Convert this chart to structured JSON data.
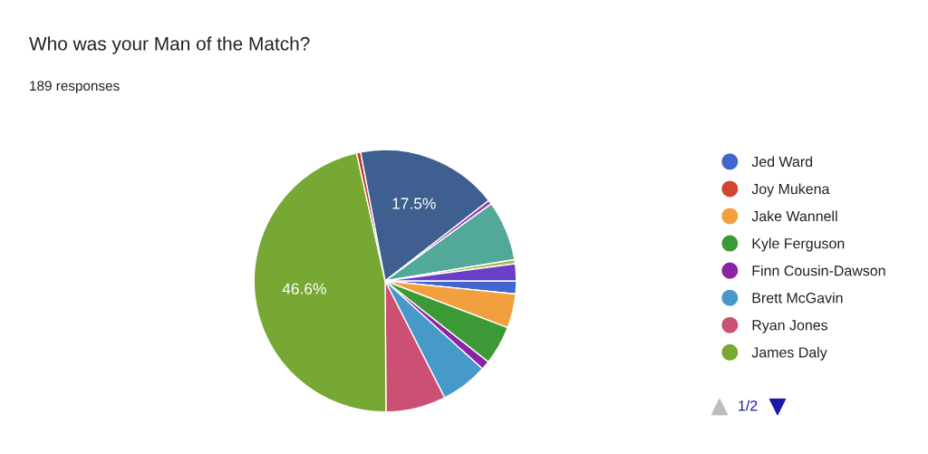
{
  "chart_data": {
    "type": "pie",
    "title": "Who was your Man of the Match?",
    "subtitle": "189 responses",
    "categories": [
      "Jed Ward",
      "Joy Mukena",
      "Jake Wannell",
      "Kyle Ferguson",
      "Finn Cousin-Dawson",
      "Brett McGavin",
      "Ryan Jones",
      "James Daly",
      null,
      null,
      null,
      null,
      null,
      null
    ],
    "values": [
      1.6,
      0,
      4.2,
      4.8,
      1.1,
      5.8,
      7.4,
      46.6,
      0.5,
      17.5,
      0.5,
      7.4,
      0.5,
      2.1
    ],
    "value_labels": [
      null,
      null,
      null,
      null,
      null,
      null,
      null,
      "46.6%",
      null,
      "17.5%",
      null,
      null,
      null,
      null
    ],
    "colors": [
      "#4166cc",
      "#d4452f",
      "#f2a03d",
      "#3c9a36",
      "#8c22a6",
      "#4799c9",
      "#cc5073",
      "#78a834",
      "#c23b2e",
      "#3e5f8f",
      "#9b3fa8",
      "#52a99a",
      "#a8b84a",
      "#6a3fc8"
    ],
    "legend": "right",
    "annotations": [
      "1/2"
    ]
  }
}
